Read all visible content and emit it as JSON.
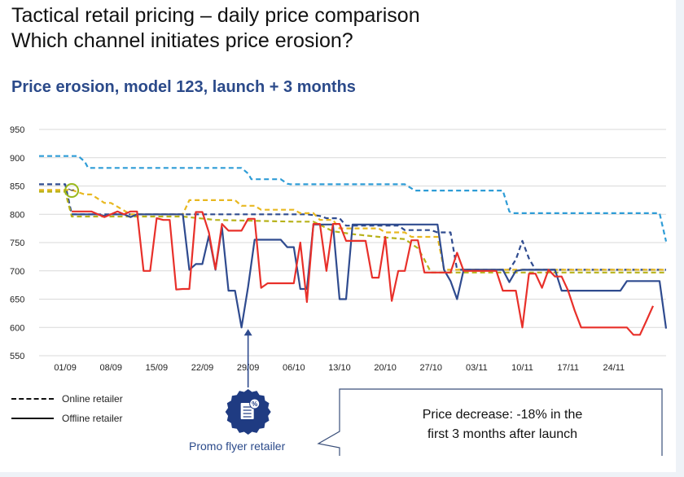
{
  "title_line1": "Tactical retail pricing – daily price comparison",
  "title_line2": "Which channel initiates price erosion?",
  "subtitle": "Price erosion, model 123, launch + 3 months",
  "legend": {
    "online": "Online retailer",
    "offline": "Offline retailer"
  },
  "promo_label": "Promo flyer retailer",
  "callout": {
    "line1": "Price decrease: -18% in the",
    "line2": "first 3 months after launch"
  },
  "colors": {
    "light_blue": "#2e9cd6",
    "navy": "#2f4b8f",
    "gold": "#e8b820",
    "olive": "#b7b21a",
    "red": "#e8302a",
    "grid": "#d9d9d9",
    "promo_marker": "#1f3b82",
    "circle_marker": "#9ab81c"
  },
  "chart_data": {
    "type": "line",
    "title": "Price erosion, model 123, launch + 3 months",
    "xlabel": "",
    "ylabel": "",
    "x_domain": [
      0,
      96
    ],
    "ylim": [
      550,
      950
    ],
    "y_ticks": [
      550,
      600,
      650,
      700,
      750,
      800,
      850,
      900,
      950
    ],
    "x_ticks": [
      {
        "label": "01/09",
        "x": 4
      },
      {
        "label": "08/09",
        "x": 11
      },
      {
        "label": "15/09",
        "x": 18
      },
      {
        "label": "22/09",
        "x": 25
      },
      {
        "label": "29/09",
        "x": 32
      },
      {
        "label": "06/10",
        "x": 39
      },
      {
        "label": "13/10",
        "x": 46
      },
      {
        "label": "20/10",
        "x": 53
      },
      {
        "label": "27/10",
        "x": 60
      },
      {
        "label": "03/11",
        "x": 67
      },
      {
        "label": "10/11",
        "x": 74
      },
      {
        "label": "17/11",
        "x": 81
      },
      {
        "label": "24/11",
        "x": 88
      }
    ],
    "series": [
      {
        "name": "Online retailer – light blue",
        "channel": "online",
        "style": "dashed",
        "color": "#2e9cd6",
        "x": [
          0,
          6,
          7,
          7.5,
          31,
          32,
          32.5,
          37,
          38,
          38.5,
          56,
          57,
          57.5,
          68,
          69,
          69.5,
          71,
          72,
          72.5,
          95,
          96
        ],
        "values": [
          903,
          903,
          893,
          882,
          882,
          872,
          862,
          862,
          854,
          853,
          853,
          846,
          842,
          842,
          842,
          842,
          842,
          805,
          802,
          802,
          752
        ]
      },
      {
        "name": "Online retailer – navy",
        "channel": "online",
        "style": "dashed",
        "color": "#2f4b8f",
        "x": [
          0,
          4,
          5,
          41,
          43,
          44,
          46,
          47,
          55,
          56,
          60,
          61,
          63,
          64,
          72,
          73,
          74,
          75,
          76,
          96
        ],
        "values": [
          853,
          853,
          800,
          800,
          797,
          793,
          793,
          780,
          780,
          772,
          772,
          768,
          768,
          702,
          702,
          720,
          753,
          722,
          702,
          702
        ]
      },
      {
        "name": "Online retailer – gold",
        "channel": "online",
        "style": "dashed",
        "color": "#e8b820",
        "x": [
          0,
          5,
          7,
          8,
          10,
          11,
          14,
          15,
          22,
          23,
          30,
          31,
          33,
          34,
          39,
          40,
          42,
          43,
          45,
          46,
          52,
          53,
          56,
          57,
          61,
          62,
          96
        ],
        "values": [
          843,
          843,
          835,
          835,
          820,
          820,
          800,
          800,
          800,
          825,
          825,
          815,
          815,
          808,
          808,
          802,
          802,
          790,
          790,
          775,
          775,
          768,
          768,
          760,
          760,
          702,
          702
        ]
      },
      {
        "name": "Online retailer – olive",
        "channel": "online",
        "style": "dashed",
        "color": "#b7b21a",
        "x": [
          0,
          4,
          5,
          22,
          27,
          39,
          42,
          45,
          48,
          52,
          56,
          58,
          59,
          60,
          96
        ],
        "values": [
          840,
          840,
          796,
          796,
          790,
          787,
          787,
          770,
          765,
          760,
          756,
          740,
          720,
          697,
          697
        ]
      },
      {
        "name": "Offline retailer – navy",
        "channel": "offline",
        "style": "solid",
        "color": "#2f4b8f",
        "x": [
          5,
          9,
          10,
          11,
          13,
          14,
          15,
          21,
          22,
          23,
          24,
          25,
          26,
          27,
          28,
          29,
          30,
          31,
          32,
          33,
          34,
          35,
          36,
          37,
          38,
          39,
          40,
          41,
          42,
          43,
          44,
          45,
          46,
          47,
          48,
          49,
          50,
          51,
          52,
          54,
          55,
          56,
          57,
          58,
          59,
          60,
          61,
          62,
          63,
          64,
          65,
          66,
          67,
          68,
          69,
          70,
          71,
          72,
          73,
          74,
          75,
          76,
          77,
          78,
          79,
          80,
          81,
          82,
          83,
          84,
          85,
          86,
          87,
          88,
          89,
          90,
          91,
          92,
          93,
          94,
          95,
          96
        ],
        "values": [
          800,
          800,
          797,
          800,
          800,
          795,
          800,
          800,
          800,
          702,
          712,
          712,
          762,
          702,
          777,
          665,
          665,
          600,
          672,
          755,
          755,
          755,
          755,
          755,
          742,
          742,
          668,
          668,
          782,
          782,
          782,
          782,
          650,
          650,
          782,
          782,
          782,
          782,
          782,
          782,
          782,
          782,
          782,
          782,
          782,
          782,
          782,
          702,
          682,
          650,
          702,
          702,
          702,
          702,
          702,
          702,
          702,
          680,
          700,
          702,
          702,
          702,
          702,
          702,
          702,
          665,
          665,
          665,
          665,
          665,
          665,
          665,
          665,
          665,
          665,
          682,
          682,
          682,
          682,
          682,
          682,
          598
        ]
      },
      {
        "name": "Offline retailer – red",
        "channel": "offline",
        "style": "solid",
        "color": "#e8302a",
        "x": [
          5,
          8,
          9,
          10,
          11,
          12,
          13,
          14,
          15,
          16,
          17,
          18,
          19,
          20,
          21,
          22,
          23,
          24,
          25,
          26,
          27,
          28,
          29,
          30,
          31,
          32,
          33,
          34,
          35,
          36,
          37,
          38,
          39,
          40,
          41,
          42,
          43,
          44,
          45,
          46,
          47,
          48,
          49,
          50,
          51,
          52,
          53,
          54,
          55,
          56,
          57,
          58,
          59,
          60,
          61,
          62,
          63,
          64,
          65,
          66,
          67,
          68,
          69,
          70,
          71,
          72,
          73,
          74,
          75,
          76,
          77,
          78,
          79,
          80,
          81,
          82,
          83,
          84,
          85,
          86,
          87,
          88,
          89,
          90,
          91,
          92,
          93,
          94
        ],
        "values": [
          805,
          805,
          800,
          795,
          800,
          805,
          800,
          805,
          805,
          700,
          700,
          793,
          790,
          790,
          667,
          668,
          668,
          804,
          804,
          768,
          703,
          783,
          771,
          771,
          771,
          792,
          792,
          670,
          678,
          678,
          678,
          678,
          678,
          750,
          645,
          783,
          783,
          700,
          783,
          783,
          753,
          753,
          753,
          753,
          688,
          688,
          760,
          647,
          700,
          700,
          754,
          754,
          697,
          697,
          697,
          697,
          697,
          732,
          700,
          700,
          700,
          700,
          700,
          700,
          665,
          665,
          665,
          600,
          695,
          695,
          670,
          702,
          690,
          690,
          665,
          630,
          600,
          600,
          600,
          600,
          600,
          600,
          600,
          600,
          587,
          587,
          612,
          638
        ]
      }
    ],
    "annotations": [
      {
        "type": "circle",
        "x": 5,
        "y": 842,
        "note": "first price move marker"
      },
      {
        "type": "arrow",
        "x": 32,
        "y": 600,
        "label": "Promo flyer retailer"
      }
    ]
  }
}
